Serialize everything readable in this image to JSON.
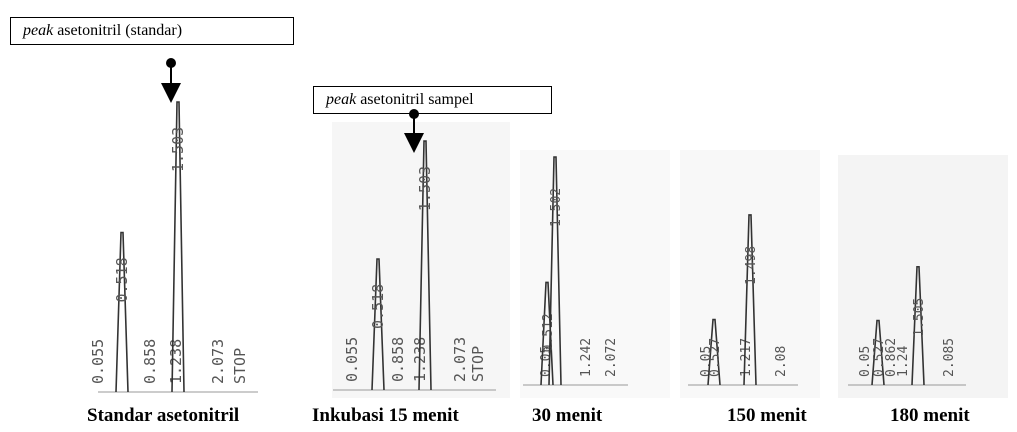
{
  "callouts": {
    "standard": {
      "emph": "peak",
      "rest": " asetonitril (standar)"
    },
    "sample": {
      "emph": "peak",
      "rest": " asetonitril sampel"
    }
  },
  "chart_data": [
    {
      "type": "line",
      "caption": "Standar asetonitril",
      "peaks": [
        {
          "label": "0.055",
          "height": 0
        },
        {
          "label": "0.518",
          "height": 0.55
        },
        {
          "label": "0.858",
          "height": 0
        },
        {
          "label": "1.238",
          "height": 0
        },
        {
          "label": "1.503",
          "height": 1.0
        },
        {
          "label": "2.073",
          "height": 0
        },
        {
          "label": "STOP",
          "height": 0
        }
      ]
    },
    {
      "type": "line",
      "caption": "Inkubasi 15 menit",
      "peaks": [
        {
          "label": "0.055",
          "height": 0
        },
        {
          "label": "0.518",
          "height": 0.5
        },
        {
          "label": "0.858",
          "height": 0
        },
        {
          "label": "1.238",
          "height": 0
        },
        {
          "label": "1.503",
          "height": 0.95
        },
        {
          "label": "2.073",
          "height": 0
        },
        {
          "label": "STOP",
          "height": 0
        }
      ]
    },
    {
      "type": "line",
      "caption": "30 menit",
      "peaks": [
        {
          "label": "0.05",
          "height": 0
        },
        {
          "label": "0.512",
          "height": 0.45
        },
        {
          "label": "1.242",
          "height": 0
        },
        {
          "label": "1.502",
          "height": 1.0
        },
        {
          "label": "2.072",
          "height": 0
        }
      ]
    },
    {
      "type": "line",
      "caption": "150 menit",
      "peaks": [
        {
          "label": "0.05",
          "height": 0
        },
        {
          "label": "0.527",
          "height": 0.3
        },
        {
          "label": "1.217",
          "height": 0
        },
        {
          "label": "1.498",
          "height": 0.78
        },
        {
          "label": "2.08",
          "height": 0
        }
      ]
    },
    {
      "type": "line",
      "caption": "180 menit",
      "peaks": [
        {
          "label": "0.05",
          "height": 0
        },
        {
          "label": "0.527",
          "height": 0.3
        },
        {
          "label": "0.862",
          "height": 0
        },
        {
          "label": "1.24",
          "height": 0
        },
        {
          "label": "1.505",
          "height": 0.55
        },
        {
          "label": "2.085",
          "height": 0
        }
      ]
    }
  ]
}
